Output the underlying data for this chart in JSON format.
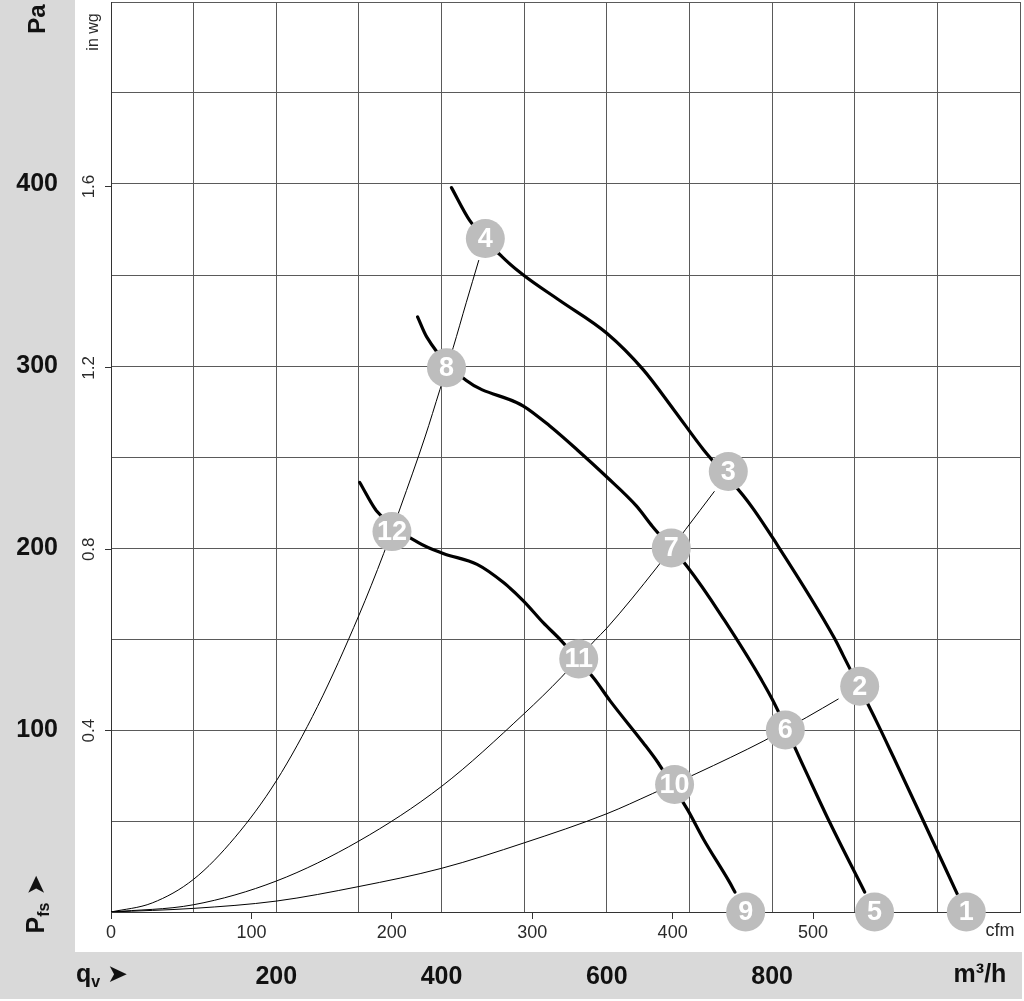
{
  "chart_data": {
    "type": "line",
    "xlabel": "m³/h",
    "ylabel": "Pa",
    "x2label": "cfm",
    "y2label": "in wg",
    "annotations": [
      "q$_{v}$ ➤",
      "P$_{fs}$ ➤",
      {
        "text": "1",
        "x": 1035,
        "y": 0
      },
      {
        "text": "2",
        "x": 906,
        "y": 124
      },
      {
        "text": "3",
        "x": 747,
        "y": 242
      },
      {
        "text": "4",
        "x": 453,
        "y": 370
      },
      {
        "text": "5",
        "x": 924,
        "y": 0
      },
      {
        "text": "6",
        "x": 816,
        "y": 100
      },
      {
        "text": "7",
        "x": 678,
        "y": 200
      },
      {
        "text": "8",
        "x": 406,
        "y": 299
      },
      {
        "text": "9",
        "x": 768,
        "y": 0
      },
      {
        "text": "10",
        "x": 682,
        "y": 70
      },
      {
        "text": "11",
        "x": 566,
        "y": 139
      },
      {
        "text": "12",
        "x": 340,
        "y": 209
      }
    ],
    "xlim": [
      0,
      1100
    ],
    "xticks": [
      {
        "value": 0,
        "label": null
      },
      {
        "value": 100,
        "label": null
      },
      200,
      {
        "value": 300,
        "label": null
      },
      400,
      {
        "value": 500,
        "label": null
      },
      600,
      {
        "value": 700,
        "label": null
      },
      800,
      {
        "value": 900,
        "label": null
      },
      {
        "value": 1000,
        "label": null
      },
      {
        "value": 1100,
        "label": null
      }
    ],
    "x2lim": [
      0,
      647.4
    ],
    "x2ticks": [
      0,
      100,
      200,
      300,
      400,
      500
    ],
    "ylim": [
      0,
      500
    ],
    "yticks": [
      {
        "value": 0,
        "label": null
      },
      {
        "value": 50,
        "label": null
      },
      100,
      {
        "value": 150,
        "label": null
      },
      200,
      {
        "value": 250,
        "label": null
      },
      300,
      {
        "value": 350,
        "label": null
      },
      400,
      {
        "value": 450,
        "label": null
      },
      {
        "value": 500,
        "label": null
      }
    ],
    "y2lim": [
      0,
      2.007
    ],
    "y2ticks": [
      0.4,
      0.8,
      1.2,
      1.6
    ],
    "grid": true,
    "series": [
      {
        "color": "#000000",
        "x": [
          412,
          434,
          471,
          499,
          543,
          600,
          644,
          681,
          717,
          770,
          803,
          876,
          886,
          926,
          947,
          979,
          1024
        ],
        "values": [
          398,
          380,
          361,
          350,
          336,
          318,
          298,
          276,
          254,
          226,
          204,
          150,
          141,
          105,
          85,
          54,
          10
        ]
      },
      {
        "color": "#000000",
        "x": [
          371,
          382,
          430,
          499,
          531,
          564,
          600,
          636,
          655,
          697,
          737,
          800,
          838,
          870,
          912
        ],
        "values": [
          327,
          316,
          292,
          278,
          267,
          254,
          239,
          223,
          212,
          190,
          164,
          117,
          80,
          49,
          11
        ]
      },
      {
        "color": "#000000",
        "x": [
          301,
          322,
          372,
          402,
          443,
          475,
          499,
          523,
          545,
          585,
          604,
          644,
          662,
          698,
          717,
          749,
          755
        ],
        "values": [
          236,
          220,
          203,
          197,
          191,
          181,
          171,
          159,
          149,
          128,
          116,
          93,
          82,
          56,
          40,
          16,
          11
        ]
      },
      {
        "color": "#000000",
        "x": [
          0,
          50,
          100,
          150,
          200,
          250,
          300,
          330,
          350,
          380,
          398,
          414,
          430,
          445
        ],
        "values": [
          0,
          5,
          18,
          41,
          72,
          113,
          163,
          197,
          222,
          261,
          287,
          310,
          335,
          358
        ]
      },
      {
        "color": "#000000",
        "x": [
          0,
          100,
          200,
          300,
          400,
          500,
          545,
          585,
          600,
          660,
          695,
          730
        ],
        "values": [
          0,
          4,
          17,
          39,
          69,
          109,
          129,
          149,
          156,
          189,
          210,
          231
        ]
      },
      {
        "color": "#000000",
        "x": [
          0,
          100,
          200,
          300,
          400,
          500,
          600,
          655,
          708,
          750,
          790,
          842,
          880
        ],
        "values": [
          0,
          2,
          6,
          14,
          24,
          38,
          54,
          65,
          76,
          85,
          94,
          107,
          117
        ]
      },
      {
        "type": "scatter",
        "color": "#bdbdbd",
        "marker": "circle",
        "x": [
          1035,
          906,
          747,
          453,
          924,
          816,
          678,
          406,
          768,
          682,
          566,
          340
        ],
        "values": [
          0,
          124,
          242,
          370,
          0,
          100,
          200,
          299,
          0,
          70,
          139,
          209
        ]
      }
    ]
  }
}
